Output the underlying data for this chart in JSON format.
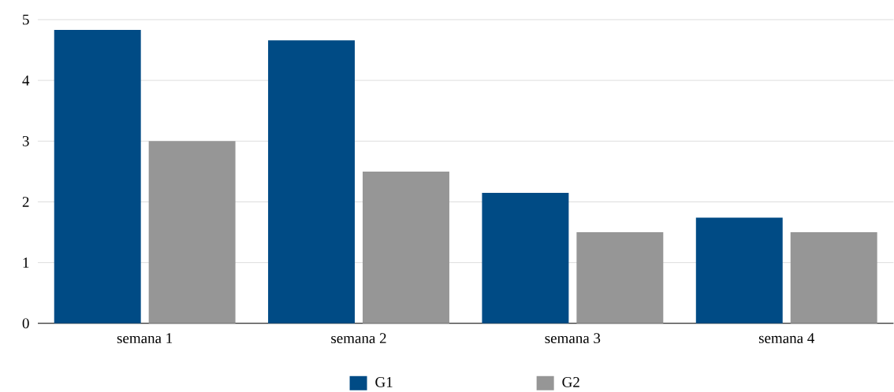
{
  "chart_data": {
    "type": "bar",
    "categories": [
      "semana 1",
      "semana 2",
      "semana 3",
      "semana 4"
    ],
    "series": [
      {
        "name": "G1",
        "color": "#004b85",
        "values": [
          4.83,
          4.66,
          2.15,
          1.74
        ]
      },
      {
        "name": "G2",
        "color": "#969696",
        "values": [
          3,
          2.5,
          1.5,
          1.5
        ]
      }
    ],
    "ylim": [
      0,
      5
    ],
    "yticks": [
      0,
      1,
      2,
      3,
      4,
      5
    ],
    "grid": "y",
    "legend": "bottom"
  }
}
